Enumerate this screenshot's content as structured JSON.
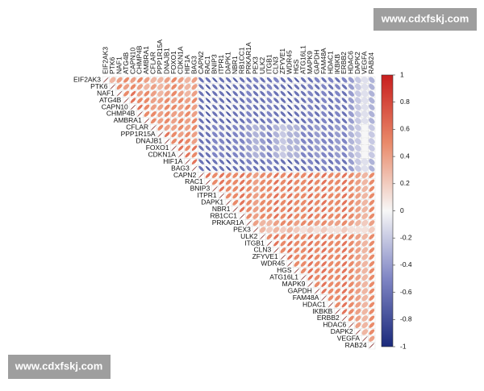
{
  "watermarks": [
    "www.cdxfskj.com",
    "www.cdxfskj.com"
  ],
  "chart_data": {
    "type": "correlogram",
    "labels": [
      "EIF2AK3",
      "PTK6",
      "NAF1",
      "ATG4B",
      "CAPN10",
      "CHMP4B",
      "AMBRA1",
      "CFLAR",
      "PPP1R15A",
      "DNAJB1",
      "FOXO1",
      "CDKN1A",
      "HIF1A",
      "BAG3",
      "CAPN2",
      "RAC1",
      "BNIP3",
      "ITPR1",
      "DAPK1",
      "NBR1",
      "RB1CC1",
      "PRKAR1A",
      "PEX3",
      "ULK2",
      "ITGB1",
      "CLN3",
      "ZFYVE1",
      "WDR45",
      "HGS",
      "ATG16L1",
      "MAPK9",
      "GAPDH",
      "FAM48A",
      "HDAC1",
      "IKBKB",
      "ERBB2",
      "HDAC6",
      "DAPK2",
      "VEGFA",
      "RAB24"
    ],
    "matrix": [
      [
        1,
        0.3,
        0.4,
        0.5,
        0.4,
        0.5,
        0.4,
        0.3,
        0.3,
        0.4,
        0.5,
        0.4,
        0.3,
        0.4,
        -0.6,
        -0.6,
        -0.7,
        -0.6,
        -0.6,
        -0.7,
        -0.6,
        -0.6,
        -0.5,
        -0.6,
        -0.6,
        -0.5,
        -0.6,
        -0.6,
        -0.7,
        -0.6,
        -0.6,
        -0.5,
        -0.6,
        -0.5,
        -0.6,
        -0.5,
        -0.4,
        -0.2,
        -0.1,
        -0.3
      ],
      [
        1,
        0.5,
        0.4,
        0.5,
        0.4,
        0.3,
        0.4,
        0.3,
        0.4,
        0.5,
        0.4,
        0.3,
        0.4,
        -0.6,
        -0.7,
        -0.6,
        -0.6,
        -0.7,
        -0.6,
        -0.6,
        -0.5,
        -0.6,
        -0.6,
        -0.5,
        -0.6,
        -0.6,
        -0.7,
        -0.6,
        -0.6,
        -0.5,
        -0.6,
        -0.5,
        -0.6,
        -0.5,
        -0.6,
        -0.4,
        -0.2,
        -0.1,
        -0.3
      ],
      [
        1,
        0.5,
        0.6,
        0.4,
        0.5,
        0.4,
        0.3,
        0.4,
        0.5,
        0.4,
        0.3,
        0.4,
        -0.6,
        -0.7,
        -0.6,
        -0.6,
        -0.7,
        -0.6,
        -0.6,
        -0.5,
        -0.6,
        -0.6,
        -0.5,
        -0.6,
        -0.6,
        -0.7,
        -0.6,
        -0.6,
        -0.5,
        -0.6,
        -0.5,
        -0.6,
        -0.5,
        -0.6,
        -0.4,
        -0.2,
        -0.1,
        -0.3
      ],
      [
        1,
        0.6,
        0.5,
        0.5,
        0.4,
        0.4,
        0.5,
        0.4,
        0.5,
        0.4,
        0.5,
        -0.6,
        -0.7,
        -0.6,
        -0.6,
        -0.7,
        -0.6,
        -0.6,
        -0.5,
        -0.6,
        -0.6,
        -0.5,
        -0.6,
        -0.6,
        -0.7,
        -0.6,
        -0.6,
        -0.5,
        -0.6,
        -0.5,
        -0.6,
        -0.5,
        -0.6,
        -0.4,
        -0.2,
        -0.1,
        -0.3
      ],
      [
        1,
        0.6,
        0.5,
        0.4,
        0.4,
        0.5,
        0.5,
        0.4,
        0.5,
        0.4,
        -0.6,
        -0.7,
        -0.6,
        -0.6,
        -0.7,
        -0.6,
        -0.6,
        -0.5,
        -0.6,
        -0.6,
        -0.5,
        -0.6,
        -0.6,
        -0.7,
        -0.6,
        -0.6,
        -0.5,
        -0.6,
        -0.5,
        -0.6,
        -0.5,
        -0.6,
        -0.4,
        -0.2,
        -0.1,
        -0.3
      ],
      [
        1,
        0.5,
        0.5,
        0.4,
        0.5,
        0.4,
        0.4,
        0.5,
        0.4,
        -0.6,
        -0.7,
        -0.6,
        -0.6,
        -0.7,
        -0.6,
        -0.6,
        -0.5,
        -0.6,
        -0.6,
        -0.5,
        -0.6,
        -0.6,
        -0.7,
        -0.6,
        -0.6,
        -0.5,
        -0.6,
        -0.5,
        -0.6,
        -0.5,
        -0.6,
        -0.4,
        -0.2,
        -0.1,
        -0.3
      ],
      [
        1,
        0.5,
        0.4,
        0.5,
        0.4,
        0.5,
        0.4,
        0.5,
        -0.6,
        -0.7,
        -0.6,
        -0.6,
        -0.7,
        -0.6,
        -0.6,
        -0.5,
        -0.6,
        -0.6,
        -0.5,
        -0.6,
        -0.6,
        -0.7,
        -0.6,
        -0.6,
        -0.5,
        -0.6,
        -0.5,
        -0.6,
        -0.5,
        -0.6,
        -0.4,
        -0.2,
        -0.1,
        -0.3
      ],
      [
        1,
        0.5,
        0.4,
        0.4,
        0.5,
        0.4,
        0.5,
        -0.6,
        -0.6,
        -0.5,
        -0.5,
        -0.6,
        -0.5,
        -0.5,
        -0.4,
        -0.3,
        -0.4,
        -0.5,
        -0.3,
        -0.2,
        -0.3,
        -0.3,
        -0.5,
        -0.5,
        -0.4,
        -0.5,
        -0.5,
        -0.4,
        -0.5,
        -0.3,
        -0.2,
        0,
        -0.2
      ],
      [
        1,
        0.6,
        0.5,
        0.4,
        0.5,
        0.4,
        -0.6,
        -0.6,
        -0.5,
        -0.5,
        -0.6,
        -0.5,
        -0.5,
        -0.4,
        -0.3,
        -0.4,
        -0.5,
        -0.3,
        -0.2,
        -0.3,
        -0.3,
        -0.5,
        -0.5,
        -0.4,
        -0.5,
        -0.5,
        -0.4,
        -0.5,
        -0.3,
        -0.2,
        0,
        -0.2
      ],
      [
        1,
        0.5,
        0.6,
        0.5,
        0.4,
        -0.6,
        -0.6,
        -0.5,
        -0.5,
        -0.6,
        -0.5,
        -0.5,
        -0.4,
        -0.3,
        -0.4,
        -0.5,
        -0.3,
        -0.2,
        -0.3,
        -0.3,
        -0.5,
        -0.5,
        -0.4,
        -0.5,
        -0.5,
        -0.4,
        -0.5,
        -0.3,
        -0.2,
        0,
        -0.2
      ],
      [
        1,
        0.6,
        0.5,
        0.6,
        -0.6,
        -0.6,
        -0.5,
        -0.5,
        -0.6,
        -0.5,
        -0.5,
        -0.4,
        -0.3,
        -0.4,
        -0.5,
        -0.3,
        -0.2,
        -0.3,
        -0.3,
        -0.5,
        -0.5,
        -0.4,
        -0.5,
        -0.5,
        -0.4,
        -0.5,
        -0.3,
        -0.2,
        0,
        -0.2
      ],
      [
        1,
        0.6,
        0.5,
        -0.6,
        -0.6,
        -0.5,
        -0.5,
        -0.6,
        -0.5,
        -0.5,
        -0.4,
        -0.3,
        -0.4,
        -0.5,
        -0.3,
        -0.2,
        -0.3,
        -0.3,
        -0.5,
        -0.5,
        -0.4,
        -0.5,
        -0.5,
        -0.4,
        -0.5,
        -0.3,
        -0.2,
        0,
        -0.2
      ],
      [
        1,
        0.6,
        -0.6,
        -0.7,
        -0.6,
        -0.6,
        -0.7,
        -0.6,
        -0.6,
        -0.5,
        -0.6,
        -0.6,
        -0.5,
        -0.6,
        -0.6,
        -0.7,
        -0.6,
        -0.6,
        -0.5,
        -0.6,
        -0.5,
        -0.6,
        -0.5,
        -0.6,
        -0.4,
        -0.2,
        -0.1,
        -0.3
      ],
      [
        1,
        -0.6,
        -0.7,
        -0.6,
        -0.6,
        -0.7,
        -0.6,
        -0.6,
        -0.5,
        -0.6,
        -0.6,
        -0.5,
        -0.6,
        -0.6,
        -0.7,
        -0.6,
        -0.6,
        -0.5,
        -0.6,
        -0.5,
        -0.6,
        -0.5,
        -0.6,
        -0.4,
        -0.2,
        -0.1,
        -0.3
      ],
      [
        1,
        0.6,
        0.5,
        0.6,
        0.5,
        0.5,
        0.6,
        0.5,
        0.4,
        0.5,
        0.5,
        0.6,
        0.5,
        0.6,
        0.5,
        0.5,
        0.6,
        0.5,
        0.6,
        0.5,
        0.5,
        0.6,
        0.5,
        0.4,
        0.3,
        0.5
      ],
      [
        1,
        0.5,
        0.6,
        0.5,
        0.5,
        0.6,
        0.5,
        0.4,
        0.5,
        0.5,
        0.6,
        0.5,
        0.6,
        0.5,
        0.5,
        0.6,
        0.5,
        0.6,
        0.5,
        0.5,
        0.6,
        0.5,
        0.4,
        0.3,
        0.5
      ],
      [
        1,
        0.6,
        0.5,
        0.5,
        0.6,
        0.5,
        0.4,
        0.5,
        0.5,
        0.6,
        0.5,
        0.6,
        0.5,
        0.5,
        0.6,
        0.5,
        0.6,
        0.5,
        0.5,
        0.6,
        0.5,
        0.4,
        0.3,
        0.5
      ],
      [
        1,
        0.5,
        0.5,
        0.6,
        0.5,
        0.4,
        0.5,
        0.5,
        0.6,
        0.5,
        0.6,
        0.5,
        0.5,
        0.6,
        0.5,
        0.6,
        0.5,
        0.5,
        0.6,
        0.5,
        0.4,
        0.3,
        0.5
      ],
      [
        1,
        0.5,
        0.6,
        0.5,
        0.4,
        0.5,
        0.5,
        0.6,
        0.5,
        0.6,
        0.5,
        0.5,
        0.6,
        0.5,
        0.6,
        0.5,
        0.5,
        0.6,
        0.5,
        0.4,
        0.3,
        0.5
      ],
      [
        1,
        0.6,
        0.5,
        0.4,
        0.5,
        0.5,
        0.6,
        0.5,
        0.6,
        0.5,
        0.5,
        0.6,
        0.5,
        0.6,
        0.5,
        0.5,
        0.6,
        0.5,
        0.4,
        0.3,
        0.5
      ],
      [
        1,
        0.5,
        0.4,
        0.5,
        0.5,
        0.6,
        0.5,
        0.6,
        0.5,
        0.5,
        0.6,
        0.5,
        0.6,
        0.5,
        0.5,
        0.6,
        0.5,
        0.4,
        0.3,
        0.5
      ],
      [
        1,
        0.4,
        0.3,
        0.3,
        0.4,
        0.5,
        0.5,
        0.4,
        0.5,
        0.5,
        0.4,
        0.5,
        0.4,
        0.4,
        0.5,
        0.4,
        0.3,
        0.2,
        0.4
      ],
      [
        1,
        0.3,
        0.2,
        0.3,
        0.2,
        0.3,
        0.2,
        0.1,
        0.2,
        0.1,
        0.2,
        0.1,
        0.1,
        0.2,
        0.1,
        0.1,
        0.1,
        0.2
      ],
      [
        1,
        0.5,
        0.6,
        0.5,
        0.6,
        0.5,
        0.5,
        0.6,
        0.5,
        0.6,
        0.5,
        0.5,
        0.6,
        0.5,
        0.4,
        0.3,
        0.5
      ],
      [
        1,
        0.6,
        0.5,
        0.6,
        0.5,
        0.5,
        0.6,
        0.5,
        0.6,
        0.5,
        0.5,
        0.6,
        0.5,
        0.4,
        0.3,
        0.5
      ],
      [
        1,
        0.5,
        0.6,
        0.5,
        0.5,
        0.6,
        0.5,
        0.6,
        0.5,
        0.5,
        0.6,
        0.5,
        0.4,
        0.3,
        0.5
      ],
      [
        1,
        0.6,
        0.5,
        0.5,
        0.6,
        0.5,
        0.6,
        0.5,
        0.5,
        0.6,
        0.5,
        0.4,
        0.3,
        0.5
      ],
      [
        1,
        0.5,
        0.5,
        0.6,
        0.5,
        0.6,
        0.5,
        0.5,
        0.6,
        0.5,
        0.4,
        0.3,
        0.5
      ],
      [
        1,
        0.5,
        0.6,
        0.5,
        0.6,
        0.5,
        0.5,
        0.6,
        0.5,
        0.4,
        0.3,
        0.5
      ],
      [
        1,
        0.6,
        0.5,
        0.6,
        0.5,
        0.5,
        0.6,
        0.5,
        0.4,
        0.3,
        0.5
      ],
      [
        1,
        0.5,
        0.6,
        0.5,
        0.5,
        0.6,
        0.5,
        0.4,
        0.3,
        0.5
      ],
      [
        1,
        0.6,
        0.5,
        0.5,
        0.6,
        0.5,
        0.4,
        0.3,
        0.5
      ],
      [
        1,
        0.5,
        0.5,
        0.6,
        0.5,
        0.4,
        0.3,
        0.5
      ],
      [
        1,
        0.5,
        0.6,
        0.5,
        0.4,
        0.3,
        0.5
      ],
      [
        1,
        0.6,
        0.5,
        0.4,
        0.3,
        0.5
      ],
      [
        1,
        0.5,
        0.4,
        0.3,
        0.5
      ],
      [
        1,
        0.4,
        0.3,
        0.5
      ],
      [
        1,
        0.3,
        0.5
      ],
      [
        1,
        0.4
      ],
      [
        1
      ]
    ],
    "clim": [
      -1,
      1
    ],
    "cticks": [
      1,
      0.8,
      0.6,
      0.4,
      0.2,
      0,
      -0.2,
      -0.4,
      -0.6,
      -0.8,
      -1
    ],
    "colors": [
      "#1b2a7b",
      "#7f85c4",
      "#f7f7f7",
      "#e98a6a",
      "#c81e1e"
    ]
  }
}
